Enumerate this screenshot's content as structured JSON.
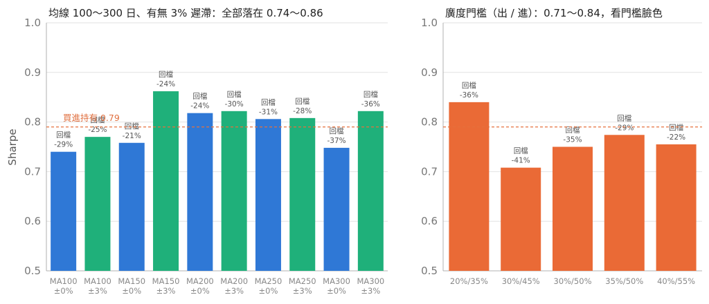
{
  "colors": {
    "blue": "#2f78d6",
    "green": "#1fb07a",
    "orange": "#ea6a36",
    "ref_line": "#e5703c",
    "grid": "#e2e2e2",
    "axis": "#b0b0b0"
  },
  "chart_data": [
    {
      "type": "bar",
      "title": "均線 100～300 日、有無 3% 遲滯：全部落在 0.74～0.86",
      "ylabel": "Sharpe",
      "xlabel": "",
      "ylim": [
        0.5,
        1.0
      ],
      "yticks": [
        "0.5",
        "0.6",
        "0.7",
        "0.8",
        "0.9",
        "1.0"
      ],
      "grid": "horizontal",
      "categories": [
        [
          "MA100",
          "±0%"
        ],
        [
          "MA100",
          "±3%"
        ],
        [
          "MA150",
          "±0%"
        ],
        [
          "MA150",
          "±3%"
        ],
        [
          "MA200",
          "±0%"
        ],
        [
          "MA200",
          "±3%"
        ],
        [
          "MA250",
          "±0%"
        ],
        [
          "MA250",
          "±3%"
        ],
        [
          "MA300",
          "±0%"
        ],
        [
          "MA300",
          "±3%"
        ]
      ],
      "values": [
        0.74,
        0.77,
        0.758,
        0.862,
        0.818,
        0.822,
        0.806,
        0.808,
        0.748,
        0.822
      ],
      "bar_colors": [
        "blue",
        "green",
        "blue",
        "green",
        "blue",
        "green",
        "blue",
        "green",
        "blue",
        "green"
      ],
      "labels": [
        [
          "回檔",
          "-29%"
        ],
        [
          "回檔",
          "-25%"
        ],
        [
          "回檔",
          "-21%"
        ],
        [
          "回檔",
          "-24%"
        ],
        [
          "回檔",
          "-24%"
        ],
        [
          "回檔",
          "-30%"
        ],
        [
          "回檔",
          "-31%"
        ],
        [
          "回檔",
          "-28%"
        ],
        [
          "回檔",
          "-37%"
        ],
        [
          "回檔",
          "-36%"
        ]
      ],
      "reference_line": {
        "value": 0.79,
        "label": "買進持有 0.79"
      }
    },
    {
      "type": "bar",
      "title": "廣度門檻（出 / 進）：0.71～0.84，看門檻臉色",
      "ylabel": "",
      "xlabel": "",
      "ylim": [
        0.5,
        1.0
      ],
      "yticks": [
        "0.5",
        "0.6",
        "0.7",
        "0.8",
        "0.9",
        "1.0"
      ],
      "grid": "horizontal",
      "categories": [
        [
          "20%/35%"
        ],
        [
          "30%/45%"
        ],
        [
          "30%/50%"
        ],
        [
          "35%/50%"
        ],
        [
          "40%/55%"
        ]
      ],
      "values": [
        0.84,
        0.708,
        0.75,
        0.774,
        0.755
      ],
      "bar_colors": [
        "orange",
        "orange",
        "orange",
        "orange",
        "orange"
      ],
      "labels": [
        [
          "回檔",
          "-36%"
        ],
        [
          "回檔",
          "-41%"
        ],
        [
          "回檔",
          "-35%"
        ],
        [
          "回檔",
          "-29%"
        ],
        [
          "回檔",
          "-22%"
        ]
      ],
      "reference_line": {
        "value": 0.79,
        "label": ""
      }
    }
  ]
}
